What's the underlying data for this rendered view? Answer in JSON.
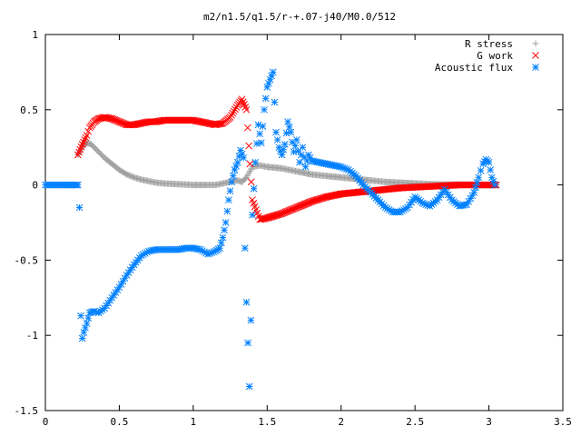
{
  "chart_data": {
    "type": "scatter",
    "title": "m2/n1.5/q1.5/r-+.07-j40/M0.0/512",
    "xlabel": "",
    "ylabel": "",
    "xlim": [
      0,
      3.5
    ],
    "ylim": [
      -1.5,
      1
    ],
    "x_ticks": [
      "0",
      "0.5",
      "1",
      "1.5",
      "2",
      "2.5",
      "3",
      "3.5"
    ],
    "y_ticks": [
      "1",
      "0.5",
      "0",
      "-0.5",
      "-1",
      "-1.5"
    ],
    "grid": false,
    "legend_position": "top-right",
    "series": [
      {
        "name": "R stress",
        "marker": "+",
        "color": "#a0a0a0",
        "x": [
          0.22,
          0.25,
          0.28,
          0.31,
          0.35,
          0.4,
          0.45,
          0.5,
          0.55,
          0.6,
          0.65,
          0.7,
          0.75,
          0.8,
          0.9,
          1.0,
          1.1,
          1.15,
          1.2,
          1.25,
          1.3,
          1.33,
          1.36,
          1.4,
          1.45,
          1.5,
          1.6,
          1.7,
          1.8,
          1.9,
          2.0,
          2.1,
          2.2,
          2.3,
          2.4,
          2.5,
          2.6,
          2.7,
          2.8,
          2.9,
          3.0,
          3.05
        ],
        "values": [
          0.2,
          0.25,
          0.28,
          0.27,
          0.23,
          0.18,
          0.14,
          0.1,
          0.07,
          0.05,
          0.035,
          0.025,
          0.015,
          0.01,
          0.005,
          0.0,
          0.0,
          0.0,
          0.01,
          0.02,
          0.03,
          0.02,
          0.05,
          0.12,
          0.13,
          0.12,
          0.11,
          0.09,
          0.07,
          0.06,
          0.05,
          0.04,
          0.03,
          0.02,
          0.015,
          0.01,
          0.005,
          0.003,
          0.002,
          0.001,
          0.0,
          0.0
        ]
      },
      {
        "name": "G work",
        "marker": "x",
        "color": "#ff0000",
        "x": [
          0.22,
          0.25,
          0.28,
          0.3,
          0.33,
          0.36,
          0.4,
          0.45,
          0.5,
          0.55,
          0.6,
          0.65,
          0.7,
          0.75,
          0.8,
          0.85,
          0.9,
          0.95,
          1.0,
          1.05,
          1.1,
          1.15,
          1.2,
          1.25,
          1.3,
          1.33,
          1.36,
          1.4,
          1.45,
          1.5,
          1.6,
          1.7,
          1.8,
          1.9,
          2.0,
          2.1,
          2.2,
          2.3,
          2.4,
          2.5,
          2.6,
          2.7,
          2.8,
          2.9,
          3.0,
          3.05
        ],
        "values": [
          0.2,
          0.27,
          0.33,
          0.38,
          0.42,
          0.44,
          0.45,
          0.44,
          0.42,
          0.4,
          0.4,
          0.41,
          0.42,
          0.42,
          0.43,
          0.43,
          0.43,
          0.43,
          0.43,
          0.42,
          0.41,
          0.4,
          0.41,
          0.45,
          0.53,
          0.57,
          0.5,
          -0.1,
          -0.23,
          -0.22,
          -0.19,
          -0.15,
          -0.11,
          -0.08,
          -0.06,
          -0.05,
          -0.04,
          -0.03,
          -0.02,
          -0.015,
          -0.01,
          -0.005,
          0.0,
          0.0,
          0.0,
          0.0
        ]
      },
      {
        "name": "Acoustic flux",
        "marker": "*",
        "color": "#0080ff",
        "x": [
          0.0,
          0.05,
          0.1,
          0.15,
          0.2,
          0.22,
          0.23,
          0.24,
          0.25,
          0.26,
          0.28,
          0.3,
          0.33,
          0.36,
          0.4,
          0.45,
          0.5,
          0.55,
          0.6,
          0.65,
          0.7,
          0.75,
          0.8,
          0.85,
          0.9,
          0.95,
          1.0,
          1.05,
          1.1,
          1.15,
          1.18,
          1.2,
          1.22,
          1.24,
          1.26,
          1.28,
          1.3,
          1.32,
          1.34,
          1.35,
          1.36,
          1.37,
          1.38,
          1.39,
          1.4,
          1.42,
          1.44,
          1.46,
          1.48,
          1.5,
          1.52,
          1.54,
          1.56,
          1.58,
          1.6,
          1.62,
          1.64,
          1.66,
          1.68,
          1.7,
          1.72,
          1.74,
          1.76,
          1.78,
          1.8,
          1.85,
          1.9,
          1.95,
          2.0,
          2.05,
          2.1,
          2.15,
          2.2,
          2.25,
          2.3,
          2.35,
          2.4,
          2.45,
          2.5,
          2.55,
          2.6,
          2.65,
          2.7,
          2.75,
          2.8,
          2.85,
          2.9,
          2.93,
          2.96,
          2.98,
          3.0,
          3.02,
          3.04
        ],
        "values": [
          0.0,
          0.0,
          0.0,
          0.0,
          0.0,
          0.0,
          -0.15,
          -0.87,
          -1.02,
          -0.98,
          -0.92,
          -0.85,
          -0.84,
          -0.85,
          -0.82,
          -0.75,
          -0.68,
          -0.6,
          -0.53,
          -0.47,
          -0.44,
          -0.43,
          -0.43,
          -0.43,
          -0.43,
          -0.42,
          -0.42,
          -0.43,
          -0.46,
          -0.44,
          -0.42,
          -0.35,
          -0.25,
          -0.1,
          0.02,
          0.1,
          0.15,
          0.23,
          0.18,
          -0.42,
          -0.78,
          -1.05,
          -1.34,
          -0.9,
          -0.2,
          0.15,
          0.4,
          0.28,
          0.5,
          0.65,
          0.7,
          0.75,
          0.35,
          0.25,
          0.2,
          0.27,
          0.42,
          0.35,
          0.22,
          0.3,
          0.15,
          0.25,
          0.12,
          0.2,
          0.16,
          0.15,
          0.14,
          0.13,
          0.12,
          0.1,
          0.06,
          0.0,
          -0.05,
          -0.1,
          -0.15,
          -0.18,
          -0.18,
          -0.15,
          -0.08,
          -0.12,
          -0.14,
          -0.1,
          -0.03,
          -0.1,
          -0.14,
          -0.13,
          -0.05,
          0.05,
          0.14,
          0.17,
          0.15,
          0.05,
          0.0
        ]
      }
    ]
  }
}
